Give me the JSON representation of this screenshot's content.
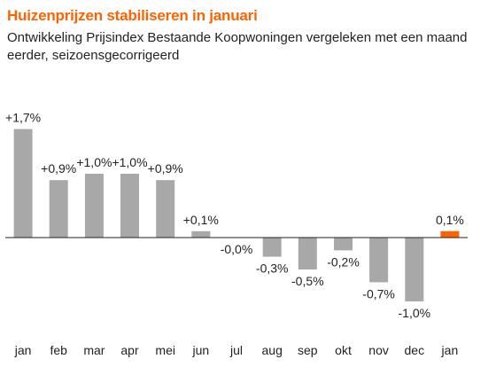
{
  "title": "Huizenprijzen stabiliseren in januari",
  "subtitle": "Ontwikkeling Prijsindex Bestaande Koopwoningen vergeleken met een maand eerder, seizoensgecorrigeerd",
  "colors": {
    "title": "#ff6200",
    "bar": "#a8a8a8",
    "highlight": "#ff6200",
    "axis": "#222222"
  },
  "chart_data": {
    "type": "bar",
    "categories": [
      "jan",
      "feb",
      "mar",
      "apr",
      "mei",
      "jun",
      "jul",
      "aug",
      "sep",
      "okt",
      "nov",
      "dec",
      "jan"
    ],
    "values": [
      1.7,
      0.9,
      1.0,
      1.0,
      0.9,
      0.1,
      -0.0,
      -0.3,
      -0.5,
      -0.2,
      -0.7,
      -1.0,
      0.1
    ],
    "data_labels": [
      "+1,7%",
      "+0,9%",
      "+1,0%",
      "+1,0%",
      "+0,9%",
      "+0,1%",
      "-0,0%",
      "-0,3%",
      "-0,5%",
      "-0,2%",
      "-0,7%",
      "-1,0%",
      "0,1%"
    ],
    "highlight_index": 12,
    "ylim": [
      -1.0,
      1.7
    ],
    "unit": "%",
    "grid": false,
    "legend": "none",
    "title": "Huizenprijzen stabiliseren in januari",
    "xlabel": "",
    "ylabel": ""
  }
}
